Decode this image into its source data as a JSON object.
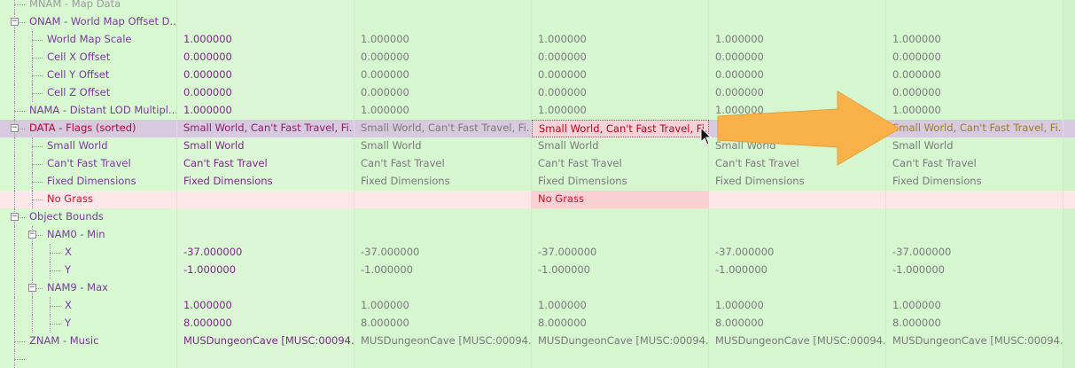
{
  "rows": [
    {
      "label": "MNAM - Map Data",
      "values": [
        "",
        "",
        "",
        "",
        ""
      ]
    },
    {
      "label": "ONAM - World Map Offset D...",
      "values": [
        "",
        "",
        "",
        "",
        ""
      ]
    },
    {
      "label": "World Map Scale",
      "values": [
        "1.000000",
        "1.000000",
        "1.000000",
        "1.000000",
        "1.000000"
      ]
    },
    {
      "label": "Cell X Offset",
      "values": [
        "0.000000",
        "0.000000",
        "0.000000",
        "0.000000",
        "0.000000"
      ]
    },
    {
      "label": "Cell Y Offset",
      "values": [
        "0.000000",
        "0.000000",
        "0.000000",
        "0.000000",
        "0.000000"
      ]
    },
    {
      "label": "Cell Z Offset",
      "values": [
        "0.000000",
        "0.000000",
        "0.000000",
        "0.000000",
        "0.000000"
      ]
    },
    {
      "label": "NAMA - Distant LOD Multipl...",
      "values": [
        "1.000000",
        "1.000000",
        "1.000000",
        "1.000000",
        "1.000000"
      ]
    },
    {
      "label": "DATA - Flags (sorted)",
      "values": [
        "Small World, Can't Fast Travel, Fi...",
        "Small World, Can't Fast Travel, Fi...",
        "Small World, Can't Fast Travel, Fi...",
        "",
        "Small World, Can't Fast Travel, Fi..."
      ]
    },
    {
      "label": "Small World",
      "values": [
        "Small World",
        "Small World",
        "Small World",
        "Small World",
        "Small World"
      ]
    },
    {
      "label": "Can't Fast Travel",
      "values": [
        "Can't Fast Travel",
        "Can't Fast Travel",
        "Can't Fast Travel",
        "Can't Fast Travel",
        "Can't Fast Travel"
      ]
    },
    {
      "label": "Fixed Dimensions",
      "values": [
        "Fixed Dimensions",
        "Fixed Dimensions",
        "Fixed Dimensions",
        "Fixed Dimensions",
        "Fixed Dimensions"
      ]
    },
    {
      "label": "No Grass",
      "values": [
        "",
        "",
        "No Grass",
        "",
        ""
      ]
    },
    {
      "label": "Object Bounds",
      "values": [
        "",
        "",
        "",
        "",
        ""
      ]
    },
    {
      "label": "NAM0 - Min",
      "values": [
        "",
        "",
        "",
        "",
        ""
      ]
    },
    {
      "label": "X",
      "values": [
        "-37.000000",
        "-37.000000",
        "-37.000000",
        "-37.000000",
        "-37.000000"
      ]
    },
    {
      "label": "Y",
      "values": [
        "-1.000000",
        "-1.000000",
        "-1.000000",
        "-1.000000",
        "-1.000000"
      ]
    },
    {
      "label": "NAM9 - Max",
      "values": [
        "",
        "",
        "",
        "",
        ""
      ]
    },
    {
      "label": "X",
      "values": [
        "1.000000",
        "1.000000",
        "1.000000",
        "1.000000",
        "1.000000"
      ]
    },
    {
      "label": "Y",
      "values": [
        "8.000000",
        "8.000000",
        "8.000000",
        "8.000000",
        "8.000000"
      ]
    },
    {
      "label": "ZNAM - Music",
      "values": [
        "MUSDungeonCave [MUSC:00094...",
        "MUSDungeonCave [MUSC:00094...",
        "MUSDungeonCave [MUSC:00094...",
        "MUSDungeonCave [MUSC:00094...",
        "MUSDungeonCave [MUSC:00094..."
      ]
    },
    {
      "label": "",
      "values": [
        "",
        "",
        "",
        "",
        ""
      ]
    }
  ],
  "colors": {
    "arrow": "#f9b24a",
    "background": "#d9f7d3"
  },
  "icons": {
    "cursor": "mouse-pointer-icon",
    "expander": "collapse-minus-icon"
  }
}
